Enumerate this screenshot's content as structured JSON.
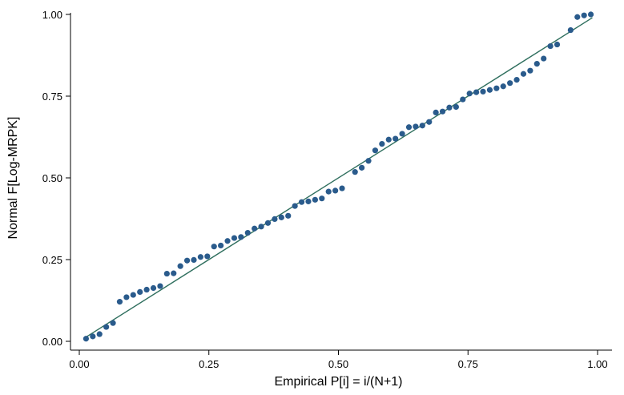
{
  "chart_data": {
    "type": "scatter",
    "xlabel": "Empirical P[i] = i/(N+1)",
    "ylabel": "Normal F[Log-MRPK]",
    "xlim": [
      0,
      1
    ],
    "ylim": [
      0,
      1
    ],
    "x_ticks": [
      "0.00",
      "0.25",
      "0.50",
      "0.75",
      "1.00"
    ],
    "y_ticks": [
      "0.00",
      "0.25",
      "0.50",
      "0.75",
      "1.00"
    ],
    "grid": false,
    "legend": "none",
    "colors": {
      "points": "#2a5b8c",
      "reference_line": "#2f6f5e"
    },
    "reference_line": {
      "x": [
        0.01,
        0.99
      ],
      "y": [
        0.01,
        0.99
      ]
    },
    "series": [
      {
        "points": [
          [
            0.013,
            0.008
          ],
          [
            0.026,
            0.015
          ],
          [
            0.039,
            0.022
          ],
          [
            0.052,
            0.044
          ],
          [
            0.065,
            0.056
          ],
          [
            0.078,
            0.121
          ],
          [
            0.091,
            0.135
          ],
          [
            0.104,
            0.142
          ],
          [
            0.117,
            0.151
          ],
          [
            0.13,
            0.158
          ],
          [
            0.143,
            0.163
          ],
          [
            0.156,
            0.169
          ],
          [
            0.169,
            0.207
          ],
          [
            0.182,
            0.208
          ],
          [
            0.195,
            0.23
          ],
          [
            0.208,
            0.247
          ],
          [
            0.221,
            0.249
          ],
          [
            0.234,
            0.258
          ],
          [
            0.247,
            0.26
          ],
          [
            0.26,
            0.29
          ],
          [
            0.273,
            0.293
          ],
          [
            0.286,
            0.307
          ],
          [
            0.299,
            0.316
          ],
          [
            0.312,
            0.319
          ],
          [
            0.325,
            0.332
          ],
          [
            0.338,
            0.345
          ],
          [
            0.351,
            0.351
          ],
          [
            0.364,
            0.362
          ],
          [
            0.377,
            0.374
          ],
          [
            0.39,
            0.379
          ],
          [
            0.403,
            0.384
          ],
          [
            0.416,
            0.414
          ],
          [
            0.429,
            0.426
          ],
          [
            0.442,
            0.428
          ],
          [
            0.455,
            0.433
          ],
          [
            0.468,
            0.437
          ],
          [
            0.481,
            0.458
          ],
          [
            0.494,
            0.461
          ],
          [
            0.507,
            0.468
          ],
          [
            0.532,
            0.518
          ],
          [
            0.545,
            0.531
          ],
          [
            0.558,
            0.552
          ],
          [
            0.571,
            0.584
          ],
          [
            0.584,
            0.604
          ],
          [
            0.597,
            0.617
          ],
          [
            0.61,
            0.62
          ],
          [
            0.623,
            0.635
          ],
          [
            0.636,
            0.655
          ],
          [
            0.649,
            0.657
          ],
          [
            0.662,
            0.66
          ],
          [
            0.675,
            0.671
          ],
          [
            0.688,
            0.7
          ],
          [
            0.701,
            0.703
          ],
          [
            0.714,
            0.715
          ],
          [
            0.727,
            0.717
          ],
          [
            0.74,
            0.74
          ],
          [
            0.753,
            0.758
          ],
          [
            0.766,
            0.762
          ],
          [
            0.779,
            0.764
          ],
          [
            0.792,
            0.769
          ],
          [
            0.805,
            0.774
          ],
          [
            0.818,
            0.78
          ],
          [
            0.831,
            0.79
          ],
          [
            0.844,
            0.8
          ],
          [
            0.857,
            0.818
          ],
          [
            0.87,
            0.828
          ],
          [
            0.883,
            0.849
          ],
          [
            0.896,
            0.865
          ],
          [
            0.909,
            0.903
          ],
          [
            0.922,
            0.908
          ],
          [
            0.948,
            0.952
          ],
          [
            0.961,
            0.992
          ],
          [
            0.974,
            0.997
          ],
          [
            0.987,
            1.0
          ]
        ]
      }
    ]
  }
}
